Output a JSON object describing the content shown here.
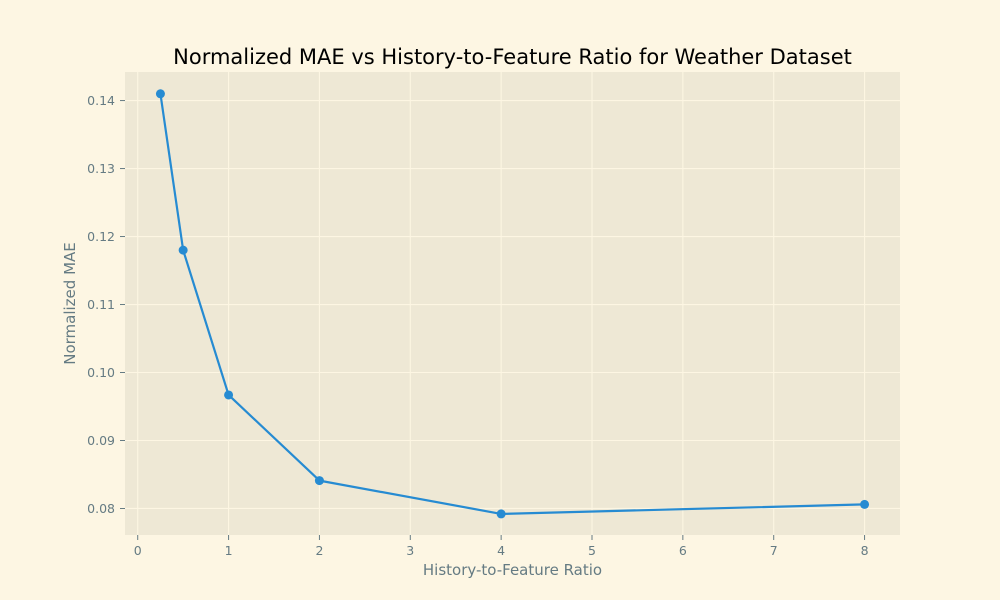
{
  "colors": {
    "figure_background": "#fdf6e3",
    "plot_background": "#eee8d5",
    "grid": "#fdf6e3",
    "tick": "#657b83",
    "text": "#657b83",
    "title": "#000000",
    "series": "#268bd2"
  },
  "chart_data": {
    "type": "line",
    "title": "Normalized MAE vs History-to-Feature Ratio for Weather Dataset",
    "xlabel": "History-to-Feature Ratio",
    "ylabel": "Normalized MAE",
    "xlim": [
      -0.14,
      8.39
    ],
    "ylim": [
      0.0761,
      0.1442
    ],
    "xticks": [
      0,
      1,
      2,
      3,
      4,
      5,
      6,
      7,
      8
    ],
    "yticks": [
      0.08,
      0.09,
      0.1,
      0.11,
      0.12,
      0.13,
      0.14
    ],
    "xtick_labels": [
      "0",
      "1",
      "2",
      "3",
      "4",
      "5",
      "6",
      "7",
      "8"
    ],
    "ytick_labels": [
      "0.08",
      "0.09",
      "0.10",
      "0.11",
      "0.12",
      "0.13",
      "0.14"
    ],
    "grid": true,
    "legend": false,
    "marker": "circle",
    "series": [
      {
        "x": [
          0.25,
          0.5,
          1,
          2,
          4,
          8
        ],
        "y": [
          0.141,
          0.118,
          0.0967,
          0.0841,
          0.0792,
          0.0806
        ]
      }
    ]
  }
}
